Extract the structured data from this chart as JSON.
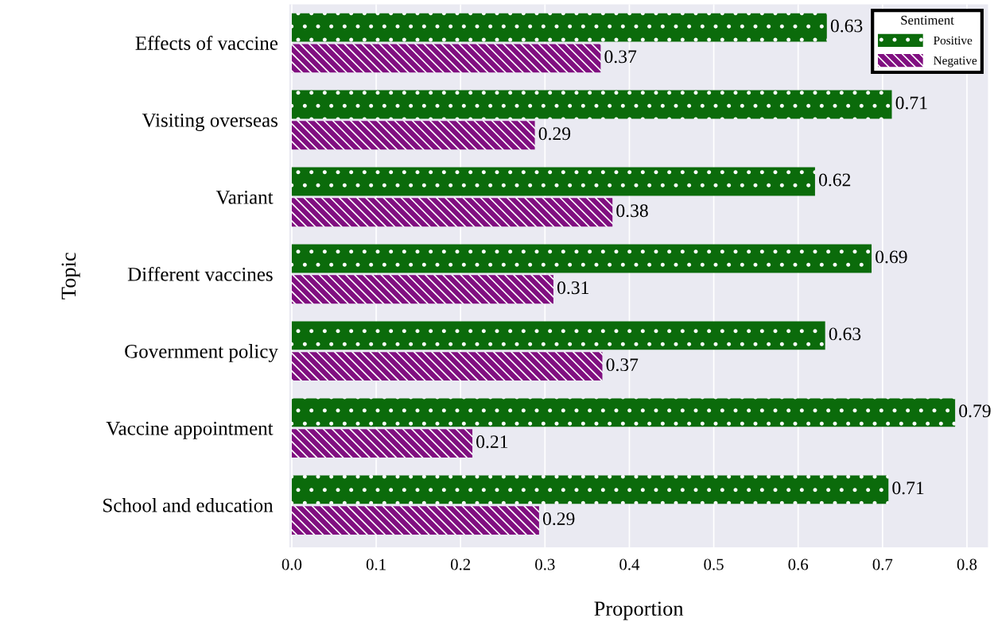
{
  "chart_data": {
    "type": "bar",
    "orientation": "horizontal",
    "xlabel": "Proportion",
    "ylabel": "Topic",
    "legend_title": "Sentiment",
    "legend": "top right",
    "grid": "x",
    "categories": [
      "Effects of vaccine",
      "Visiting overseas",
      "Variant ",
      "Different vaccines ",
      "Government policy",
      "Vaccine appointment ",
      "School and education "
    ],
    "series": [
      {
        "name": "Positive",
        "color": "#0b6b0b",
        "values": [
          0.634,
          0.711,
          0.62,
          0.687,
          0.632,
          0.786,
          0.707
        ],
        "value_labels": [
          "0.63",
          "0.71",
          "0.62",
          "0.69",
          "0.63",
          "0.79",
          "0.71"
        ]
      },
      {
        "name": "Negative",
        "color": "#800f80",
        "values": [
          0.366,
          0.288,
          0.38,
          0.31,
          0.368,
          0.214,
          0.293
        ],
        "value_labels": [
          "0.37",
          "0.29",
          "0.38",
          "0.31",
          "0.37",
          "0.21",
          "0.29"
        ]
      }
    ],
    "xlim": [
      -0.003,
      0.825
    ],
    "xticks": [
      {
        "value": 0,
        "label": "0.0"
      },
      0.1,
      0.2,
      0.3,
      0.4,
      0.5,
      0.6,
      0.7,
      0.8
    ]
  }
}
